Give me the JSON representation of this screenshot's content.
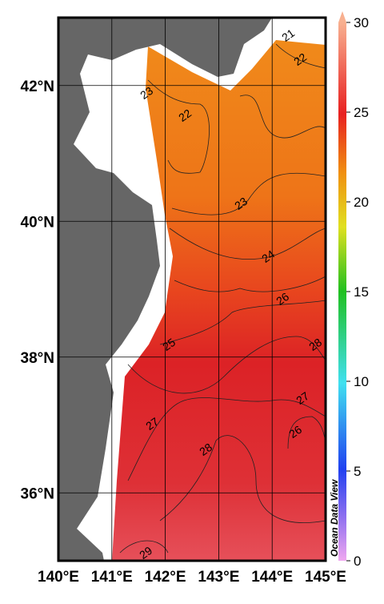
{
  "map": {
    "xlim": [
      140,
      145
    ],
    "ylim": [
      35,
      43
    ],
    "xticks": [
      {
        "value": 140,
        "label": "140°E"
      },
      {
        "value": 141,
        "label": "141°E"
      },
      {
        "value": 142,
        "label": "142°E"
      },
      {
        "value": 143,
        "label": "143°E"
      },
      {
        "value": 144,
        "label": "144°E"
      },
      {
        "value": 145,
        "label": "145°E"
      }
    ],
    "yticks": [
      {
        "value": 36,
        "label": "36°N"
      },
      {
        "value": 38,
        "label": "38°N"
      },
      {
        "value": 40,
        "label": "40°N"
      },
      {
        "value": 42,
        "label": "42°N"
      }
    ],
    "colorbar": {
      "lim": [
        0,
        30
      ],
      "ticks": [
        0,
        5,
        10,
        15,
        20,
        25,
        30
      ]
    },
    "contour_labels": [
      "21",
      "22",
      "23",
      "22",
      "23",
      "24",
      "26",
      "25",
      "28",
      "27",
      "26",
      "27",
      "28",
      "29"
    ],
    "credit": "Ocean Data View"
  }
}
